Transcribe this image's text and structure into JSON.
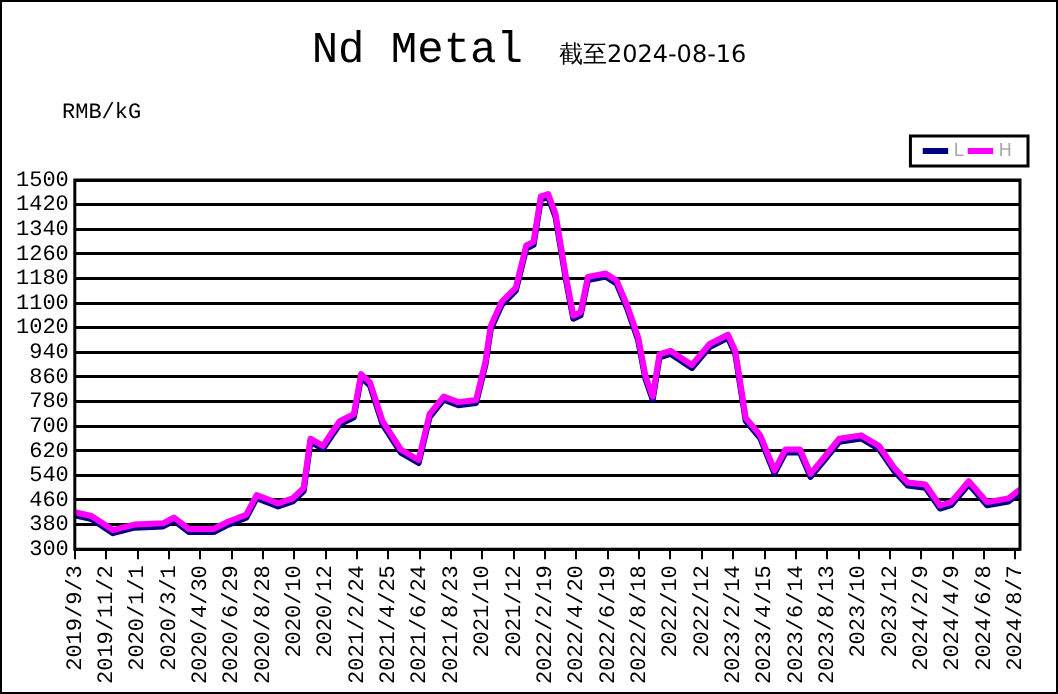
{
  "chart_data": {
    "type": "line",
    "title": "Nd Metal",
    "subtitle": "截至2024-08-16",
    "ylabel": "RMB/kG",
    "x": [
      "2019-09-03",
      "2019-10-05",
      "2019-11-15",
      "2019-12-26",
      "2020-02-19",
      "2020-03-11",
      "2020-04-08",
      "2020-05-26",
      "2020-06-22",
      "2020-07-27",
      "2020-08-16",
      "2020-09-26",
      "2020-10-24",
      "2020-11-14",
      "2020-11-27",
      "2020-12-21",
      "2021-01-08",
      "2021-01-22",
      "2021-02-18",
      "2021-03-04",
      "2021-03-21",
      "2021-04-14",
      "2021-05-19",
      "2021-06-22",
      "2021-07-13",
      "2021-08-09",
      "2021-09-06",
      "2021-10-10",
      "2021-10-28",
      "2021-11-07",
      "2021-11-28",
      "2021-12-25",
      "2022-01-14",
      "2022-01-28",
      "2022-02-11",
      "2022-02-25",
      "2022-03-11",
      "2022-03-31",
      "2022-04-14",
      "2022-04-28",
      "2022-05-12",
      "2022-06-15",
      "2022-07-06",
      "2022-07-26",
      "2022-08-16",
      "2022-08-30",
      "2022-09-13",
      "2022-09-26",
      "2022-10-17",
      "2022-11-27",
      "2022-12-31",
      "2023-02-04",
      "2023-02-18",
      "2023-03-10",
      "2023-04-07",
      "2023-05-04",
      "2023-05-25",
      "2023-06-22",
      "2023-07-12",
      "2023-08-09",
      "2023-09-05",
      "2023-10-17",
      "2023-11-20",
      "2023-12-18",
      "2024-01-14",
      "2024-02-17",
      "2024-03-16",
      "2024-04-06",
      "2024-05-10",
      "2024-06-14",
      "2024-07-25",
      "2024-08-16"
    ],
    "series": [
      {
        "name": "L",
        "color": "#000080",
        "values": [
          410,
          398,
          352,
          370,
          374,
          393,
          356,
          356,
          379,
          402,
          466,
          439,
          455,
          489,
          649,
          626,
          672,
          706,
          729,
          859,
          832,
          706,
          614,
          580,
          729,
          786,
          768,
          775,
          900,
          1015,
          1094,
          1140,
          1277,
          1289,
          1437,
          1444,
          1380,
          1175,
          1049,
          1060,
          1175,
          1186,
          1163,
          1083,
          980,
          854,
          786,
          923,
          935,
          889,
          957,
          987,
          935,
          717,
          660,
          546,
          614,
          614,
          535,
          592,
          649,
          660,
          626,
          557,
          507,
          500,
          432,
          443,
          511,
          443,
          455,
          484
        ]
      },
      {
        "name": "H",
        "color": "#ff00ff",
        "values": [
          420,
          408,
          362,
          380,
          384,
          403,
          366,
          366,
          389,
          412,
          476,
          449,
          465,
          499,
          659,
          636,
          682,
          716,
          739,
          869,
          842,
          716,
          624,
          590,
          739,
          796,
          778,
          785,
          910,
          1025,
          1104,
          1150,
          1287,
          1299,
          1447,
          1454,
          1390,
          1185,
          1059,
          1070,
          1185,
          1196,
          1173,
          1093,
          990,
          864,
          796,
          933,
          945,
          899,
          967,
          997,
          945,
          727,
          670,
          556,
          624,
          624,
          545,
          602,
          659,
          670,
          636,
          567,
          517,
          510,
          442,
          453,
          521,
          453,
          465,
          494
        ]
      }
    ],
    "xlim": [
      "2019-09-03",
      "2024-08-16"
    ],
    "xticks": [
      {
        "value": "2019-09-03",
        "label": "2019/9/3"
      },
      {
        "value": "2019-11-02",
        "label": "2019/11/2"
      },
      {
        "value": "2020-01-01",
        "label": "2020/1/1"
      },
      {
        "value": "2020-03-01",
        "label": "2020/3/1"
      },
      {
        "value": "2020-04-30",
        "label": "2020/4/30"
      },
      {
        "value": "2020-06-29",
        "label": "2020/6/29"
      },
      {
        "value": "2020-08-28",
        "label": "2020/8/28"
      },
      {
        "value": "2020-10-27",
        "label": "2020/10"
      },
      {
        "value": "2020-12-26",
        "label": "2020/12"
      },
      {
        "value": "2021-02-24",
        "label": "2021/2/24"
      },
      {
        "value": "2021-04-25",
        "label": "2021/4/25"
      },
      {
        "value": "2021-06-24",
        "label": "2021/6/24"
      },
      {
        "value": "2021-08-23",
        "label": "2021/8/23"
      },
      {
        "value": "2021-10-22",
        "label": "2021/10"
      },
      {
        "value": "2021-12-21",
        "label": "2021/12"
      },
      {
        "value": "2022-02-19",
        "label": "2022/2/19"
      },
      {
        "value": "2022-04-20",
        "label": "2022/4/20"
      },
      {
        "value": "2022-06-19",
        "label": "2022/6/19"
      },
      {
        "value": "2022-08-18",
        "label": "2022/8/18"
      },
      {
        "value": "2022-10-17",
        "label": "2022/10"
      },
      {
        "value": "2022-12-16",
        "label": "2022/12"
      },
      {
        "value": "2023-02-14",
        "label": "2023/2/14"
      },
      {
        "value": "2023-04-15",
        "label": "2023/4/15"
      },
      {
        "value": "2023-06-14",
        "label": "2023/6/14"
      },
      {
        "value": "2023-08-13",
        "label": "2023/8/13"
      },
      {
        "value": "2023-10-12",
        "label": "2023/10"
      },
      {
        "value": "2023-12-11",
        "label": "2023/12"
      },
      {
        "value": "2024-02-09",
        "label": "2024/2/9"
      },
      {
        "value": "2024-04-09",
        "label": "2024/4/9"
      },
      {
        "value": "2024-06-08",
        "label": "2024/6/8"
      },
      {
        "value": "2024-08-07",
        "label": "2024/8/7"
      }
    ],
    "ylim": [
      300,
      1500
    ],
    "yticks": [
      300,
      380,
      460,
      540,
      620,
      700,
      780,
      860,
      940,
      1020,
      1100,
      1180,
      1260,
      1340,
      1420,
      1500
    ],
    "grid": "y",
    "legend": "top right",
    "marker": "none",
    "line_style": "solid"
  }
}
